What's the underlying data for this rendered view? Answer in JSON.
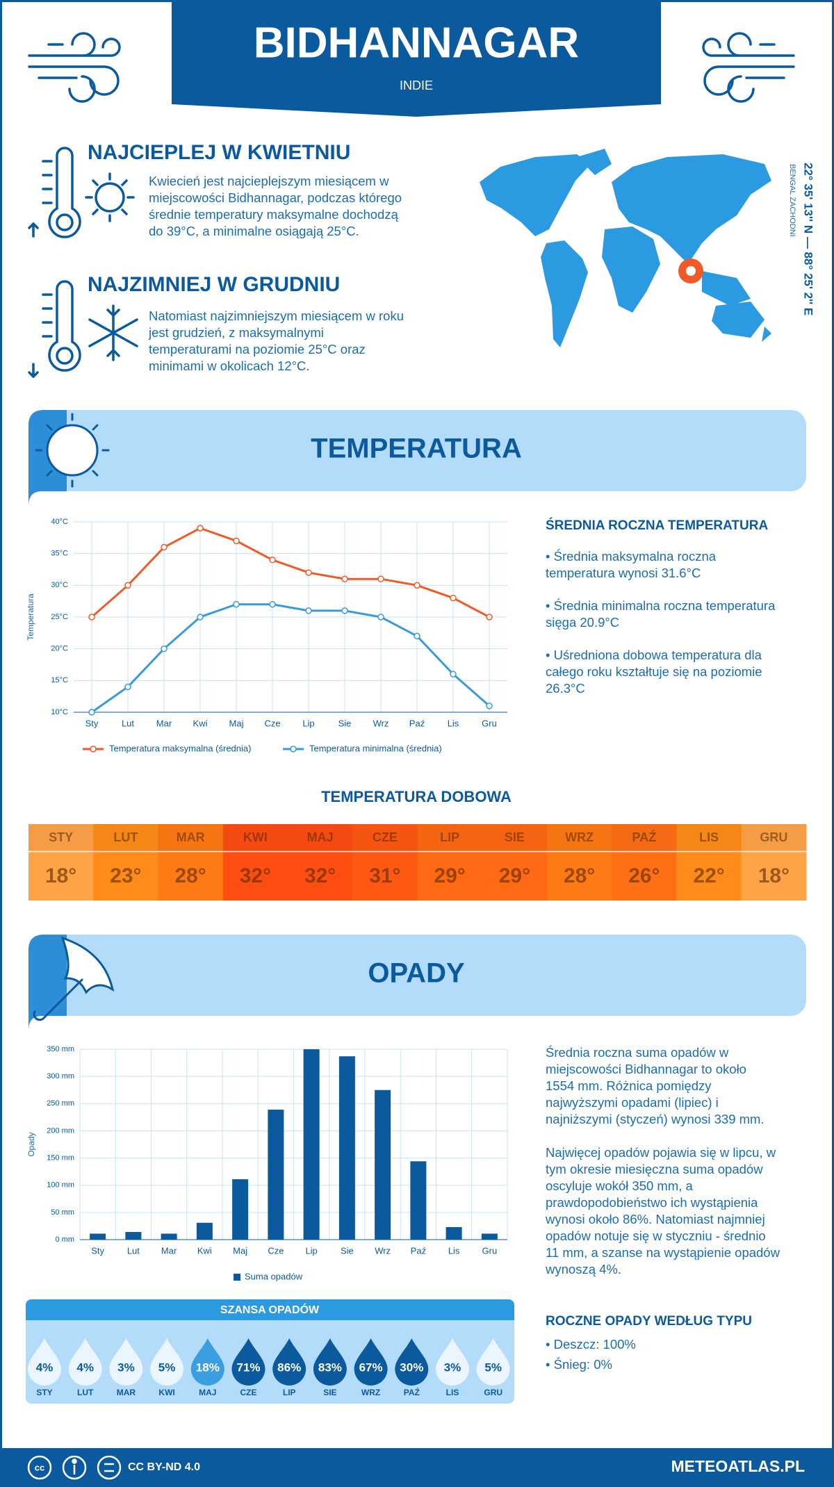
{
  "header": {
    "title": "BIDHANNAGAR",
    "subtitle": "INDIE"
  },
  "hottest": {
    "title": "NAJCIEPLEJ W KWIETNIU",
    "lines": [
      "Kwiecień jest najcieplejszym miesiącem w",
      "miejscowości Bidhannagar, podczas którego",
      "średnie temperatury maksymalne dochodzą",
      "do 39°C, a minimalne osiągają 25°C."
    ]
  },
  "coldest": {
    "title": "NAJZIMNIEJ W GRUDNIU",
    "lines": [
      "Natomiast najzimniejszym miesiącem w roku",
      "jest grudzień, z maksymalnymi",
      "temperaturami na poziomie 25°C oraz",
      "minimami w okolicach 12°C."
    ]
  },
  "location": {
    "coordinates": "22° 35' 13'' N — 88° 25' 2'' E",
    "region": "BENGAL ZACHODNI"
  },
  "temperature_section": {
    "title": "TEMPERATURA"
  },
  "chart_data": [
    {
      "type": "line",
      "y_label": "Temperatura",
      "categories": [
        "Sty",
        "Lut",
        "Mar",
        "Kwi",
        "Maj",
        "Cze",
        "Lip",
        "Sie",
        "Wrz",
        "Paź",
        "Lis",
        "Gru"
      ],
      "series": [
        {
          "name": "Temperatura maksymalna (średnia)",
          "color": "#f05a28",
          "values": [
            25,
            30,
            36,
            39,
            37,
            34,
            32,
            31,
            31,
            30,
            28,
            25
          ]
        },
        {
          "name": "Temperatura minimalna (średnia)",
          "color": "#3a9ad9",
          "values": [
            10,
            14,
            20,
            25,
            27,
            27,
            26,
            26,
            25,
            22,
            16,
            11
          ]
        }
      ],
      "ylim": [
        10,
        40
      ],
      "yticks": [
        {
          "value": 10,
          "label": "10°C"
        },
        {
          "value": 15,
          "label": "15°C"
        },
        {
          "value": 20,
          "label": "20°C"
        },
        {
          "value": 25,
          "label": "25°C"
        },
        {
          "value": 30,
          "label": "30°C"
        },
        {
          "value": 35,
          "label": "35°C"
        },
        {
          "value": 40,
          "label": "40°C"
        }
      ],
      "grid": true
    },
    {
      "type": "bar",
      "y_label": "Opady",
      "categories": [
        "Sty",
        "Lut",
        "Mar",
        "Kwi",
        "Maj",
        "Cze",
        "Lip",
        "Sie",
        "Wrz",
        "Paź",
        "Lis",
        "Gru"
      ],
      "series": [
        {
          "name": "Suma opadów",
          "color": "#0b5a9e",
          "values": [
            11,
            14,
            11,
            31,
            111,
            239,
            350,
            337,
            275,
            144,
            23,
            11
          ]
        }
      ],
      "ylim": [
        0,
        350
      ],
      "yticks": [
        {
          "value": 0,
          "label": "0 mm"
        },
        {
          "value": 50,
          "label": "50 mm"
        },
        {
          "value": 100,
          "label": "100 mm"
        },
        {
          "value": 150,
          "label": "150 mm"
        },
        {
          "value": 200,
          "label": "200 mm"
        },
        {
          "value": 250,
          "label": "250 mm"
        },
        {
          "value": 300,
          "label": "300 mm"
        },
        {
          "value": 350,
          "label": "350 mm"
        }
      ],
      "grid": true
    }
  ],
  "temperature_summary": {
    "title": "ŚREDNIA ROCZNA TEMPERATURA",
    "bullets": [
      [
        "• Średnia maksymalna roczna",
        "temperatura wynosi 31.6°C"
      ],
      [
        "• Średnia minimalna roczna temperatura",
        "sięga 20.9°C"
      ],
      [
        "• Uśredniona dobowa temperatura dla",
        "całego roku kształtuje się na poziomie",
        "26.3°C"
      ]
    ]
  },
  "daily_temperature": {
    "title": "TEMPERATURA DOBOWA",
    "months": [
      "STY",
      "LUT",
      "MAR",
      "KWI",
      "MAJ",
      "CZE",
      "LIP",
      "SIE",
      "WRZ",
      "PAŹ",
      "LIS",
      "GRU"
    ],
    "values": [
      18,
      23,
      28,
      32,
      32,
      31,
      29,
      29,
      28,
      26,
      22,
      18
    ],
    "value_labels": [
      "18°",
      "23°",
      "28°",
      "32°",
      "32°",
      "31°",
      "29°",
      "29°",
      "28°",
      "26°",
      "22°",
      "18°"
    ],
    "colors": [
      "#ffa347",
      "#ff8c1a",
      "#ff7a14",
      "#ff4e12",
      "#ff4e12",
      "#ff5812",
      "#ff6a12",
      "#ff6a12",
      "#ff7a14",
      "#ff7014",
      "#ff8c1a",
      "#ffa347"
    ]
  },
  "precipitation_section": {
    "title": "OPADY"
  },
  "precipitation_summary": {
    "paragraphs": [
      [
        "Średnia roczna suma opadów w",
        "miejscowości Bidhannagar to około",
        "1554 mm. Różnica pomiędzy",
        "najwyższymi opadami (lipiec) i",
        "najniższymi (styczeń) wynosi 339 mm."
      ],
      [
        "Najwięcej opadów pojawia się w lipcu, w",
        "tym okresie miesięczna suma opadów",
        "oscyluje wokół 350 mm, a",
        "prawdopodobieństwo ich wystąpienia",
        "wynosi około 86%. Natomiast najmniej",
        "opadów notuje się w styczniu - średnio",
        "11 mm, a szanse na wystąpienie opadów",
        "wynoszą 4%."
      ]
    ]
  },
  "precipitation_chance": {
    "title": "SZANSA OPADÓW",
    "months": [
      "STY",
      "LUT",
      "MAR",
      "KWI",
      "MAJ",
      "CZE",
      "LIP",
      "SIE",
      "WRZ",
      "PAŹ",
      "LIS",
      "GRU"
    ],
    "values": [
      4,
      4,
      3,
      5,
      18,
      71,
      86,
      83,
      67,
      30,
      3,
      5
    ],
    "value_labels": [
      "4%",
      "4%",
      "3%",
      "5%",
      "18%",
      "71%",
      "86%",
      "83%",
      "67%",
      "30%",
      "3%",
      "5%"
    ],
    "colors": [
      "#eaf5fe",
      "#eaf5fe",
      "#eaf5fe",
      "#eaf5fe",
      "#3a9ee0",
      "#0b5a9e",
      "#0b5a9e",
      "#0b5a9e",
      "#0b5a9e",
      "#0b5a9e",
      "#eaf5fe",
      "#eaf5fe"
    ]
  },
  "precipitation_type": {
    "title": "ROCZNE OPADY WEDŁUG TYPU",
    "items": [
      "• Deszcz: 100%",
      "• Śnieg: 0%"
    ]
  },
  "footer": {
    "license": "CC BY-ND 4.0",
    "site": "METEOATLAS.PL"
  }
}
